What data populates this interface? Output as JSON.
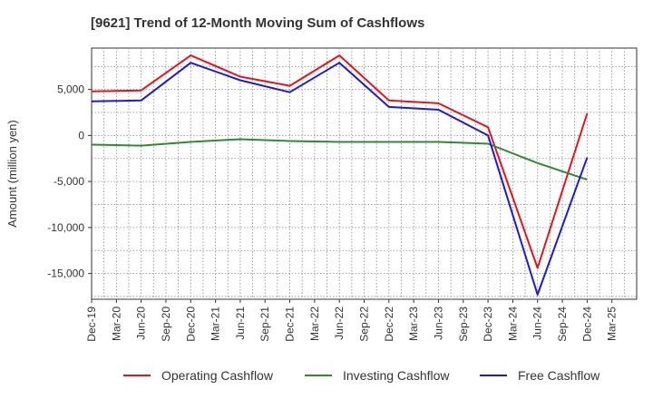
{
  "chart_data": {
    "type": "line",
    "title": "[9621]  Trend of 12-Month Moving Sum of Cashflows",
    "xlabel": "",
    "ylabel": "Amount (million yen)",
    "ylim": [
      -17800,
      9500
    ],
    "yticks": [
      5000,
      0,
      -5000,
      -10000,
      -15000
    ],
    "ytick_labels": [
      "5,000",
      "0",
      "-5,000",
      "-10,000",
      "-15,000"
    ],
    "categories": [
      "Dec-19",
      "Mar-20",
      "Jun-20",
      "Sep-20",
      "Dec-20",
      "Mar-21",
      "Jun-21",
      "Sep-21",
      "Dec-21",
      "Mar-22",
      "Jun-22",
      "Sep-22",
      "Dec-22",
      "Mar-23",
      "Jun-23",
      "Sep-23",
      "Dec-23",
      "Mar-24",
      "Jun-24",
      "Sep-24",
      "Dec-24",
      "Mar-25"
    ],
    "grid": true,
    "legend_position": "bottom",
    "series": [
      {
        "name": "Operating Cashflow",
        "color": "#e8141b",
        "values": [
          4800,
          null,
          4900,
          null,
          8700,
          null,
          6400,
          null,
          5400,
          null,
          8700,
          null,
          3800,
          null,
          3500,
          null,
          900,
          null,
          -14400,
          null,
          2400,
          null
        ]
      },
      {
        "name": "Investing Cashflow",
        "color": "#2e8b2e",
        "values": [
          -1000,
          null,
          -1100,
          null,
          -700,
          null,
          -400,
          null,
          -600,
          null,
          -700,
          null,
          -700,
          null,
          -700,
          null,
          -900,
          null,
          -3000,
          null,
          -4800,
          null
        ]
      },
      {
        "name": "Free Cashflow",
        "color": "#1a1adf",
        "values": [
          3700,
          null,
          3800,
          null,
          7900,
          null,
          6000,
          null,
          4700,
          null,
          7900,
          null,
          3100,
          null,
          2800,
          null,
          0,
          null,
          -17300,
          null,
          -2400,
          null
        ]
      }
    ]
  }
}
